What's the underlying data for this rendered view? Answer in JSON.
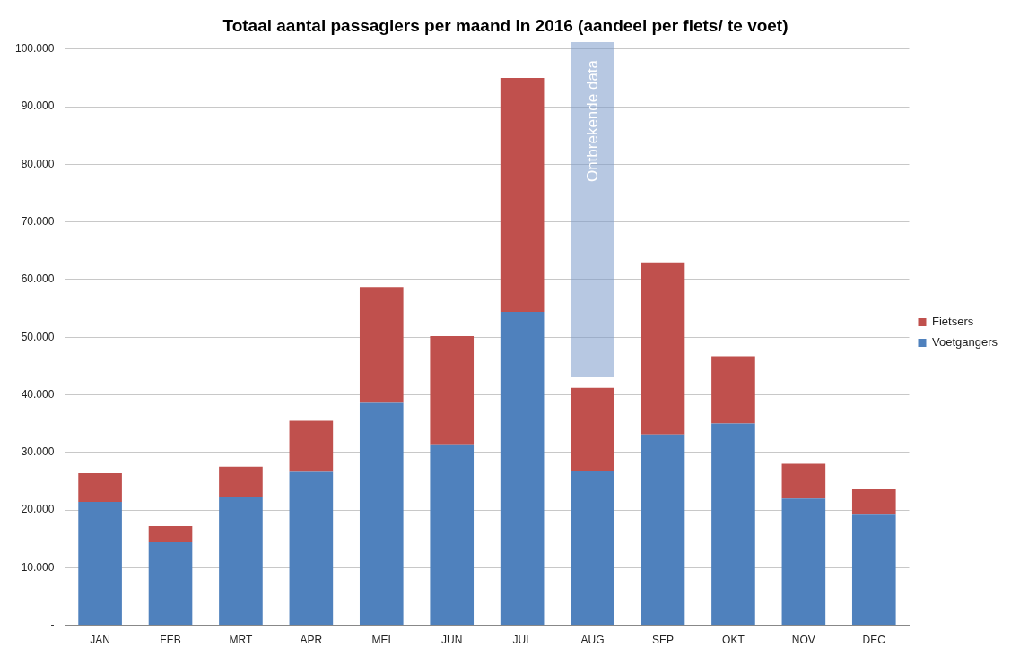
{
  "chart_data": {
    "type": "bar",
    "title": "Totaal aantal passagiers per maand in 2016 (aandeel per fiets/ te voet)",
    "categories": [
      "JAN",
      "FEB",
      "MRT",
      "APR",
      "MEI",
      "JUN",
      "JUL",
      "AUG",
      "SEP",
      "OKT",
      "NOV",
      "DEC"
    ],
    "stacked": true,
    "series": [
      {
        "name": "Voetgangers",
        "color": "#4f81bd",
        "values": [
          21400,
          14400,
          22300,
          26600,
          38600,
          31400,
          54400,
          26700,
          33100,
          35000,
          22000,
          19200
        ]
      },
      {
        "name": "Fietsers",
        "color": "#c0504d",
        "values": [
          5000,
          2800,
          5200,
          8900,
          20100,
          18800,
          40600,
          14500,
          29900,
          11700,
          6000,
          4400
        ]
      }
    ],
    "ylim": [
      0,
      100000
    ],
    "yticks": [
      {
        "value": 0,
        "label": "-"
      },
      {
        "value": 10000,
        "label": "10.000"
      },
      {
        "value": 20000,
        "label": "20.000"
      },
      {
        "value": 30000,
        "label": "30.000"
      },
      {
        "value": 40000,
        "label": "40.000"
      },
      {
        "value": 50000,
        "label": "50.000"
      },
      {
        "value": 60000,
        "label": "60.000"
      },
      {
        "value": 70000,
        "label": "70.000"
      },
      {
        "value": 80000,
        "label": "80.000"
      },
      {
        "value": 90000,
        "label": "90.000"
      },
      {
        "value": 100000,
        "label": "100.000"
      }
    ],
    "grid": "y",
    "legend": "right",
    "annotations": [
      "Ontbrekende data"
    ]
  }
}
